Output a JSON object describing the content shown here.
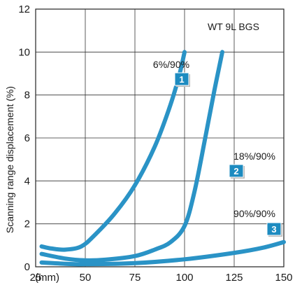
{
  "chart_data": {
    "type": "line",
    "title": "",
    "model_label": "WT 9L BGS",
    "ylabel": "Scanning range displacement (%)",
    "xunit": "(mm)",
    "xlim": [
      25,
      150
    ],
    "ylim": [
      0,
      12
    ],
    "xticks": [
      "25",
      "50",
      "75",
      "100",
      "125",
      "150"
    ],
    "yticks": [
      "0",
      "2",
      "4",
      "6",
      "8",
      "10",
      "12"
    ],
    "grid": true,
    "line_color": "#2a93c6",
    "badge_color": "#1d8bc0",
    "series": [
      {
        "name": "6%/90%",
        "badge": "1",
        "x": [
          28,
          33,
          40,
          48,
          55,
          65,
          75,
          85,
          92,
          97,
          100
        ],
        "y": [
          0.95,
          0.85,
          0.8,
          0.95,
          1.5,
          2.5,
          3.8,
          5.6,
          7.3,
          8.8,
          10.0
        ]
      },
      {
        "name": "18%/90%",
        "badge": "2",
        "x": [
          28,
          40,
          50,
          60,
          75,
          85,
          93,
          100,
          105,
          110,
          115,
          119
        ],
        "y": [
          0.6,
          0.38,
          0.3,
          0.33,
          0.5,
          0.8,
          1.15,
          1.9,
          3.5,
          5.8,
          8.2,
          10.0
        ]
      },
      {
        "name": "90%/90%",
        "badge": "3",
        "x": [
          28,
          40,
          50,
          75,
          100,
          125,
          140,
          150
        ],
        "y": [
          0.2,
          0.14,
          0.12,
          0.17,
          0.35,
          0.65,
          0.9,
          1.15
        ]
      }
    ]
  }
}
